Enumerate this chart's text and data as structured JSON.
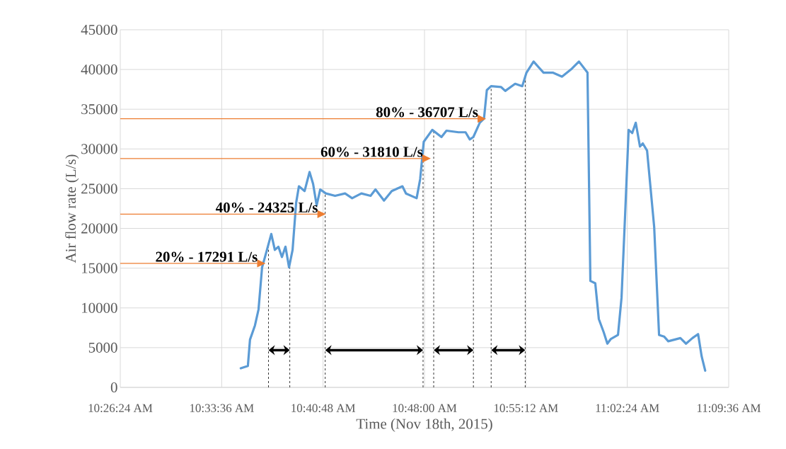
{
  "chart_data": {
    "type": "line",
    "xlabel": "Time (Nov 18th, 2015)",
    "ylabel": "Air flow rate (L/s)",
    "x": [
      10.5826,
      10.591,
      10.5935,
      10.5994,
      10.6036,
      10.6078,
      10.612,
      10.6187,
      10.6229,
      10.6271,
      10.6313,
      10.6355,
      10.6397,
      10.6439,
      10.6481,
      10.6514,
      10.6581,
      10.664,
      10.6682,
      10.6724,
      10.6766,
      10.6833,
      10.6942,
      10.706,
      10.7144,
      10.7253,
      10.7362,
      10.742,
      10.7521,
      10.7613,
      10.7739,
      10.7781,
      10.7907,
      10.7949,
      10.7991,
      10.8092,
      10.8201,
      10.826,
      10.8402,
      10.8486,
      10.8536,
      10.8578,
      10.8654,
      10.8704,
      10.8738,
      10.8788,
      10.8905,
      10.8956,
      10.9073,
      10.9157,
      10.9207,
      10.9291,
      10.9409,
      10.9518,
      10.9627,
      10.9744,
      10.9828,
      10.9929,
      10.9963,
      11.0021,
      11.0063,
      11.0122,
      11.0164,
      11.0206,
      11.029,
      11.0332,
      11.0374,
      11.0416,
      11.0458,
      11.05,
      11.055,
      11.0583,
      11.0634,
      11.0718,
      11.0776,
      11.0835,
      11.0885,
      11.1028,
      11.1095,
      11.1171,
      11.1238,
      11.128,
      11.1322
    ],
    "values": [
      2400,
      2700,
      6000,
      7800,
      9800,
      15100,
      16700,
      19300,
      17300,
      17700,
      16400,
      17700,
      15100,
      17300,
      23200,
      25300,
      24700,
      27100,
      25600,
      22900,
      24900,
      24400,
      24100,
      24400,
      23800,
      24400,
      24100,
      24900,
      23500,
      24700,
      25300,
      24400,
      23800,
      26200,
      30900,
      32400,
      31500,
      32300,
      32100,
      32100,
      31200,
      31500,
      33300,
      33800,
      37400,
      37900,
      37800,
      37300,
      38200,
      37900,
      39600,
      41000,
      39600,
      39600,
      39100,
      40100,
      41000,
      39600,
      13400,
      13100,
      8600,
      6900,
      5500,
      6100,
      6600,
      11300,
      21700,
      32400,
      32000,
      33300,
      30300,
      30700,
      29800,
      20200,
      6600,
      6400,
      5800,
      6200,
      5500,
      6200,
      6700,
      3900,
      2100
    ],
    "color": "#5b9bd5",
    "marker": "none",
    "xlim": [
      10.44,
      11.16
    ],
    "xticks": [
      {
        "value": 10.44,
        "label": "10:26:24 AM"
      },
      {
        "value": 10.56,
        "label": "10:33:36 AM"
      },
      {
        "value": 10.68,
        "label": "10:40:48 AM"
      },
      {
        "value": 10.8,
        "label": "10:48:00 AM"
      },
      {
        "value": 10.92,
        "label": "10:55:12 AM"
      },
      {
        "value": 11.04,
        "label": "11:02:24 AM"
      },
      {
        "value": 11.16,
        "label": "11:09:36 AM"
      }
    ],
    "ylim": [
      0,
      45000
    ],
    "yticks": [
      0,
      5000,
      10000,
      15000,
      20000,
      25000,
      30000,
      35000,
      40000,
      45000
    ],
    "grid": true,
    "ref_lines": [
      {
        "axis": "x",
        "value": 10.6154,
        "color": "#000000",
        "line_style": "dashed"
      },
      {
        "axis": "x",
        "value": 10.6406,
        "color": "#000000",
        "line_style": "dashed"
      },
      {
        "axis": "x",
        "value": 10.6825,
        "color": "#000000",
        "line_style": "dashed"
      },
      {
        "axis": "x",
        "value": 10.7983,
        "color": "#000000",
        "line_style": "dashed"
      },
      {
        "axis": "x",
        "value": 10.8109,
        "color": "#000000",
        "line_style": "dashed"
      },
      {
        "axis": "x",
        "value": 10.8579,
        "color": "#000000",
        "line_style": "dashed"
      },
      {
        "axis": "x",
        "value": 10.8789,
        "color": "#000000",
        "line_style": "dashed"
      },
      {
        "axis": "x",
        "value": 10.9192,
        "color": "#000000",
        "line_style": "dashed"
      }
    ],
    "annotations": [
      {
        "text": "20% - 17291 L/s",
        "x": 10.612,
        "y": 15600
      },
      {
        "text": "40% - 24325 L/s",
        "x": 10.6833,
        "y": 21800
      },
      {
        "text": "60% - 31810 L/s",
        "x": 10.8075,
        "y": 28800
      },
      {
        "text": "80% - 36707 L/s",
        "x": 10.8729,
        "y": 33800
      }
    ]
  }
}
